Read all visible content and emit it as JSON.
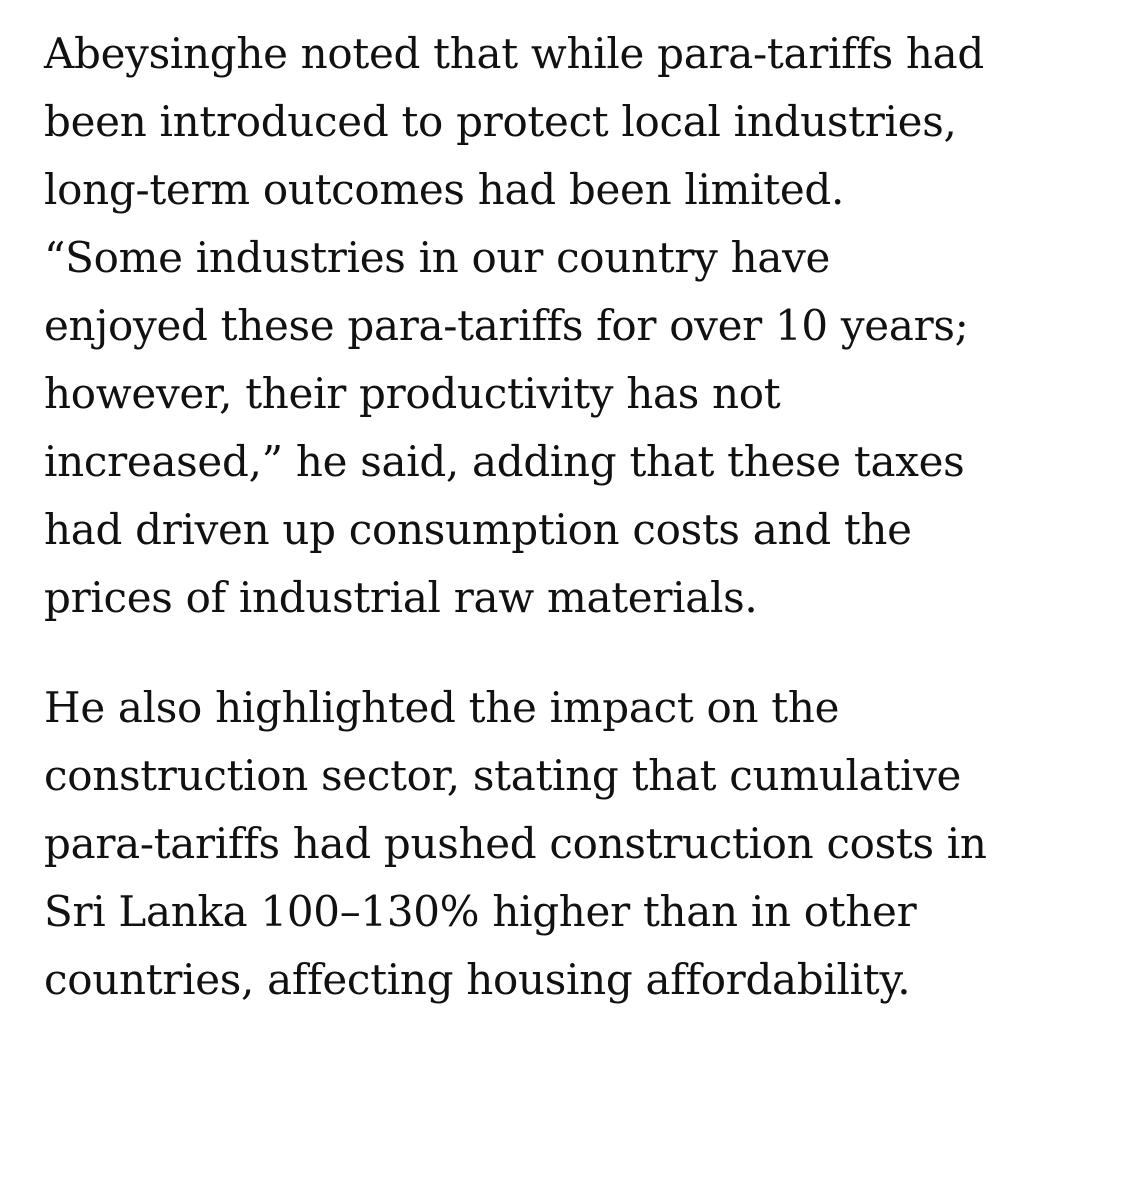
{
  "article": {
    "paragraphs": [
      {
        "lines": [
          "Abeysinghe noted that while para-tariffs had",
          "been introduced to protect local industries,",
          "long-term outcomes had been limited.",
          "“Some industries in our country have",
          "enjoyed these para-tariffs for over 10 years;",
          "however, their productivity has not",
          "increased,” he said, adding that these taxes",
          "had driven up consumption costs and the",
          "prices of industrial raw materials."
        ]
      },
      {
        "lines": [
          "He also highlighted the impact on the",
          "construction sector, stating that cumulative",
          "para-tariffs had pushed construction costs in",
          "Sri Lanka 100–130% higher than in other",
          "countries, affecting housing affordability."
        ]
      }
    ]
  }
}
